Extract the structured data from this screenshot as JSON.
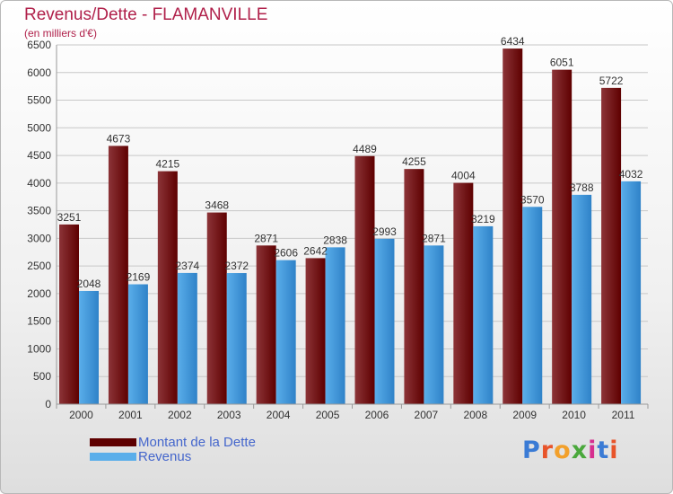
{
  "title": "Revenus/Dette - FLAMANVILLE",
  "subtitle": "(en milliers d'€)",
  "logo": {
    "letters": [
      {
        "char": "P",
        "color": "#3a7bd5"
      },
      {
        "char": "r",
        "color": "#e8542a"
      },
      {
        "char": "o",
        "color": "#f2a02b"
      },
      {
        "char": "x",
        "color": "#4aa83c"
      },
      {
        "char": "i",
        "color": "#d62f8f"
      },
      {
        "char": "t",
        "color": "#3a7bd5"
      },
      {
        "char": "i",
        "color": "#e8542a"
      }
    ]
  },
  "colors": {
    "dette_light": "#8c3438",
    "dette_dark": "#5e0000",
    "revenus_light": "#5aaeea",
    "revenus_dark": "#2f82c8",
    "grid": "#c8c8c8",
    "axis_text": "#333333"
  },
  "chart_data": {
    "type": "bar",
    "title": "Revenus/Dette - FLAMANVILLE",
    "subtitle": "(en milliers d'€)",
    "categories": [
      "2000",
      "2001",
      "2002",
      "2003",
      "2004",
      "2005",
      "2006",
      "2007",
      "2008",
      "2009",
      "2010",
      "2011"
    ],
    "series": [
      {
        "name": "Montant de la Dette",
        "values": [
          3251,
          4673,
          4215,
          3468,
          2871,
          2642,
          4489,
          4255,
          4004,
          6434,
          6051,
          5722
        ]
      },
      {
        "name": "Revenus",
        "values": [
          2048,
          2169,
          2374,
          2372,
          2606,
          2838,
          2993,
          2871,
          3219,
          3570,
          3788,
          4032
        ]
      }
    ],
    "ylim": [
      0,
      6500
    ],
    "yticks": [
      0,
      500,
      1000,
      1500,
      2000,
      2500,
      3000,
      3500,
      4000,
      4500,
      5000,
      5500,
      6000,
      6500
    ],
    "grid": true,
    "legend": "bottom-left"
  }
}
